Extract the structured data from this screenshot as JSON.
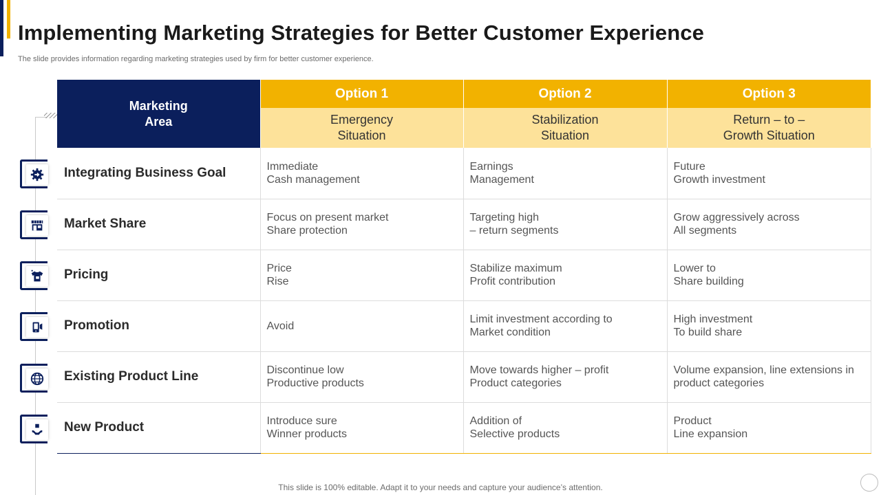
{
  "title": "Implementing Marketing Strategies for Better Customer Experience",
  "subtitle": "The slide provides information regarding marketing strategies used by firm for better customer experience.",
  "table": {
    "area_header": [
      "Marketing",
      "Area"
    ],
    "options": [
      {
        "label": "Option 1",
        "situation": [
          "Emergency",
          "Situation"
        ]
      },
      {
        "label": "Option 2",
        "situation": [
          "Stabilization",
          "Situation"
        ]
      },
      {
        "label": "Option 3",
        "situation": [
          "Return – to –",
          "Growth Situation"
        ]
      }
    ],
    "rows": [
      {
        "area": "Integrating Business Goal",
        "icon": "gear-arrow-icon",
        "cells": [
          [
            "Immediate",
            "Cash management"
          ],
          [
            "Earnings",
            "Management"
          ],
          [
            "Future",
            "Growth investment"
          ]
        ]
      },
      {
        "area": "Market Share",
        "icon": "storefront-icon",
        "cells": [
          [
            "Focus on present market",
            "Share protection"
          ],
          [
            "Targeting high",
            "– return segments"
          ],
          [
            "Grow aggressively across",
            "All segments"
          ]
        ]
      },
      {
        "area": "Pricing",
        "icon": "shirt-price-tag-icon",
        "cells": [
          [
            "Price",
            "Rise"
          ],
          [
            "Stabilize maximum",
            "Profit contribution"
          ],
          [
            "Lower to",
            "Share building"
          ]
        ]
      },
      {
        "area": "Promotion",
        "icon": "promotion-icon",
        "cells": [
          [
            "Avoid"
          ],
          [
            "Limit investment  according to",
            "Market condition"
          ],
          [
            "High investment",
            "To build share"
          ]
        ]
      },
      {
        "area": "Existing Product Line",
        "icon": "globe-icon",
        "cells": [
          [
            "Discontinue low",
            "Productive products"
          ],
          [
            "Move towards higher – profit",
            "Product categories"
          ],
          [
            "Volume expansion, line extensions in",
            "product categories"
          ]
        ]
      },
      {
        "area": "New Product",
        "icon": "hand-box-icon",
        "cells": [
          [
            "Introduce  sure",
            "Winner products"
          ],
          [
            "Addition of",
            "Selective products"
          ],
          [
            "Product",
            "Line expansion"
          ]
        ]
      }
    ]
  },
  "footer": "This slide is 100% editable. Adapt it to your needs and capture your audience’s attention.",
  "colors": {
    "navy": "#0b1f5c",
    "gold": "#f2b200",
    "light_gold": "#fde29a"
  }
}
